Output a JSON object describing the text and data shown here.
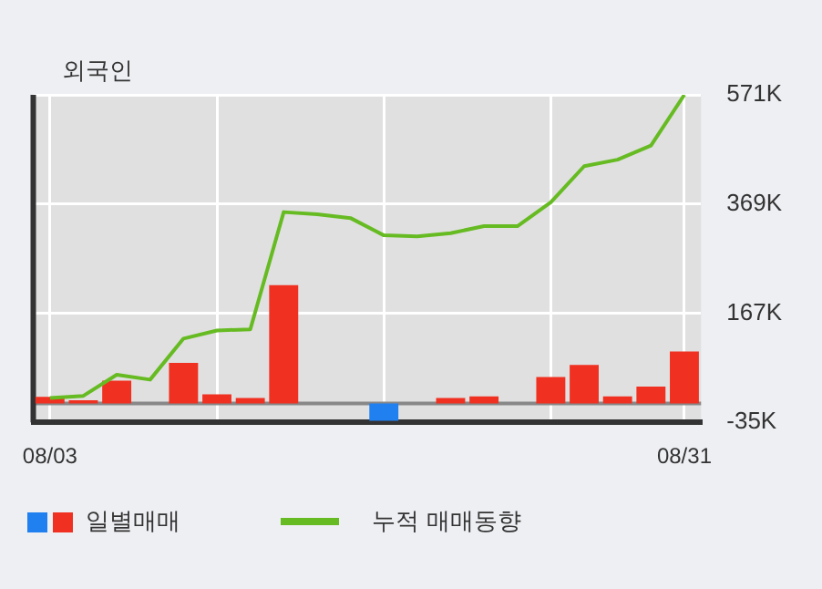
{
  "chart_data": {
    "type": "bar",
    "title": "외국인",
    "categories": [
      "08/03",
      null,
      null,
      null,
      null,
      null,
      null,
      null,
      null,
      null,
      null,
      null,
      null,
      null,
      null,
      null,
      null,
      null,
      null,
      "08/31"
    ],
    "series": [
      {
        "name": "일별매매",
        "colors": [
          "#f03020",
          "#f03020",
          "#f03020",
          "#f03020",
          "#f03020",
          "#f03020",
          "#f03020",
          "#f03020",
          "#f03020",
          "#f03020",
          "#2080f0",
          "#f03020",
          "#f03020",
          "#f03020",
          "#f03020",
          "#f03020",
          "#f03020",
          "#f03020",
          "#f03020",
          "#f03020"
        ],
        "values": [
          12,
          6,
          42,
          0,
          75,
          17,
          10,
          219,
          0,
          0,
          -32,
          0,
          10,
          13,
          0,
          49,
          71,
          13,
          31,
          96
        ]
      },
      {
        "name": "누적 매매동향",
        "type": "line",
        "color": "#66bb22",
        "values": [
          10,
          14,
          53,
          44,
          120,
          135,
          137,
          354,
          350,
          343,
          311,
          309,
          315,
          328,
          328,
          372,
          439,
          451,
          477,
          571
        ]
      }
    ],
    "ylim": [
      -35,
      571
    ],
    "yticks": [
      {
        "value": -35,
        "label": "-35K"
      },
      {
        "value": 167,
        "label": "167K"
      },
      {
        "value": 369,
        "label": "369K"
      },
      {
        "value": 571,
        "label": "571K"
      }
    ],
    "grid": true,
    "legend": "bottom",
    "marker": "none"
  }
}
